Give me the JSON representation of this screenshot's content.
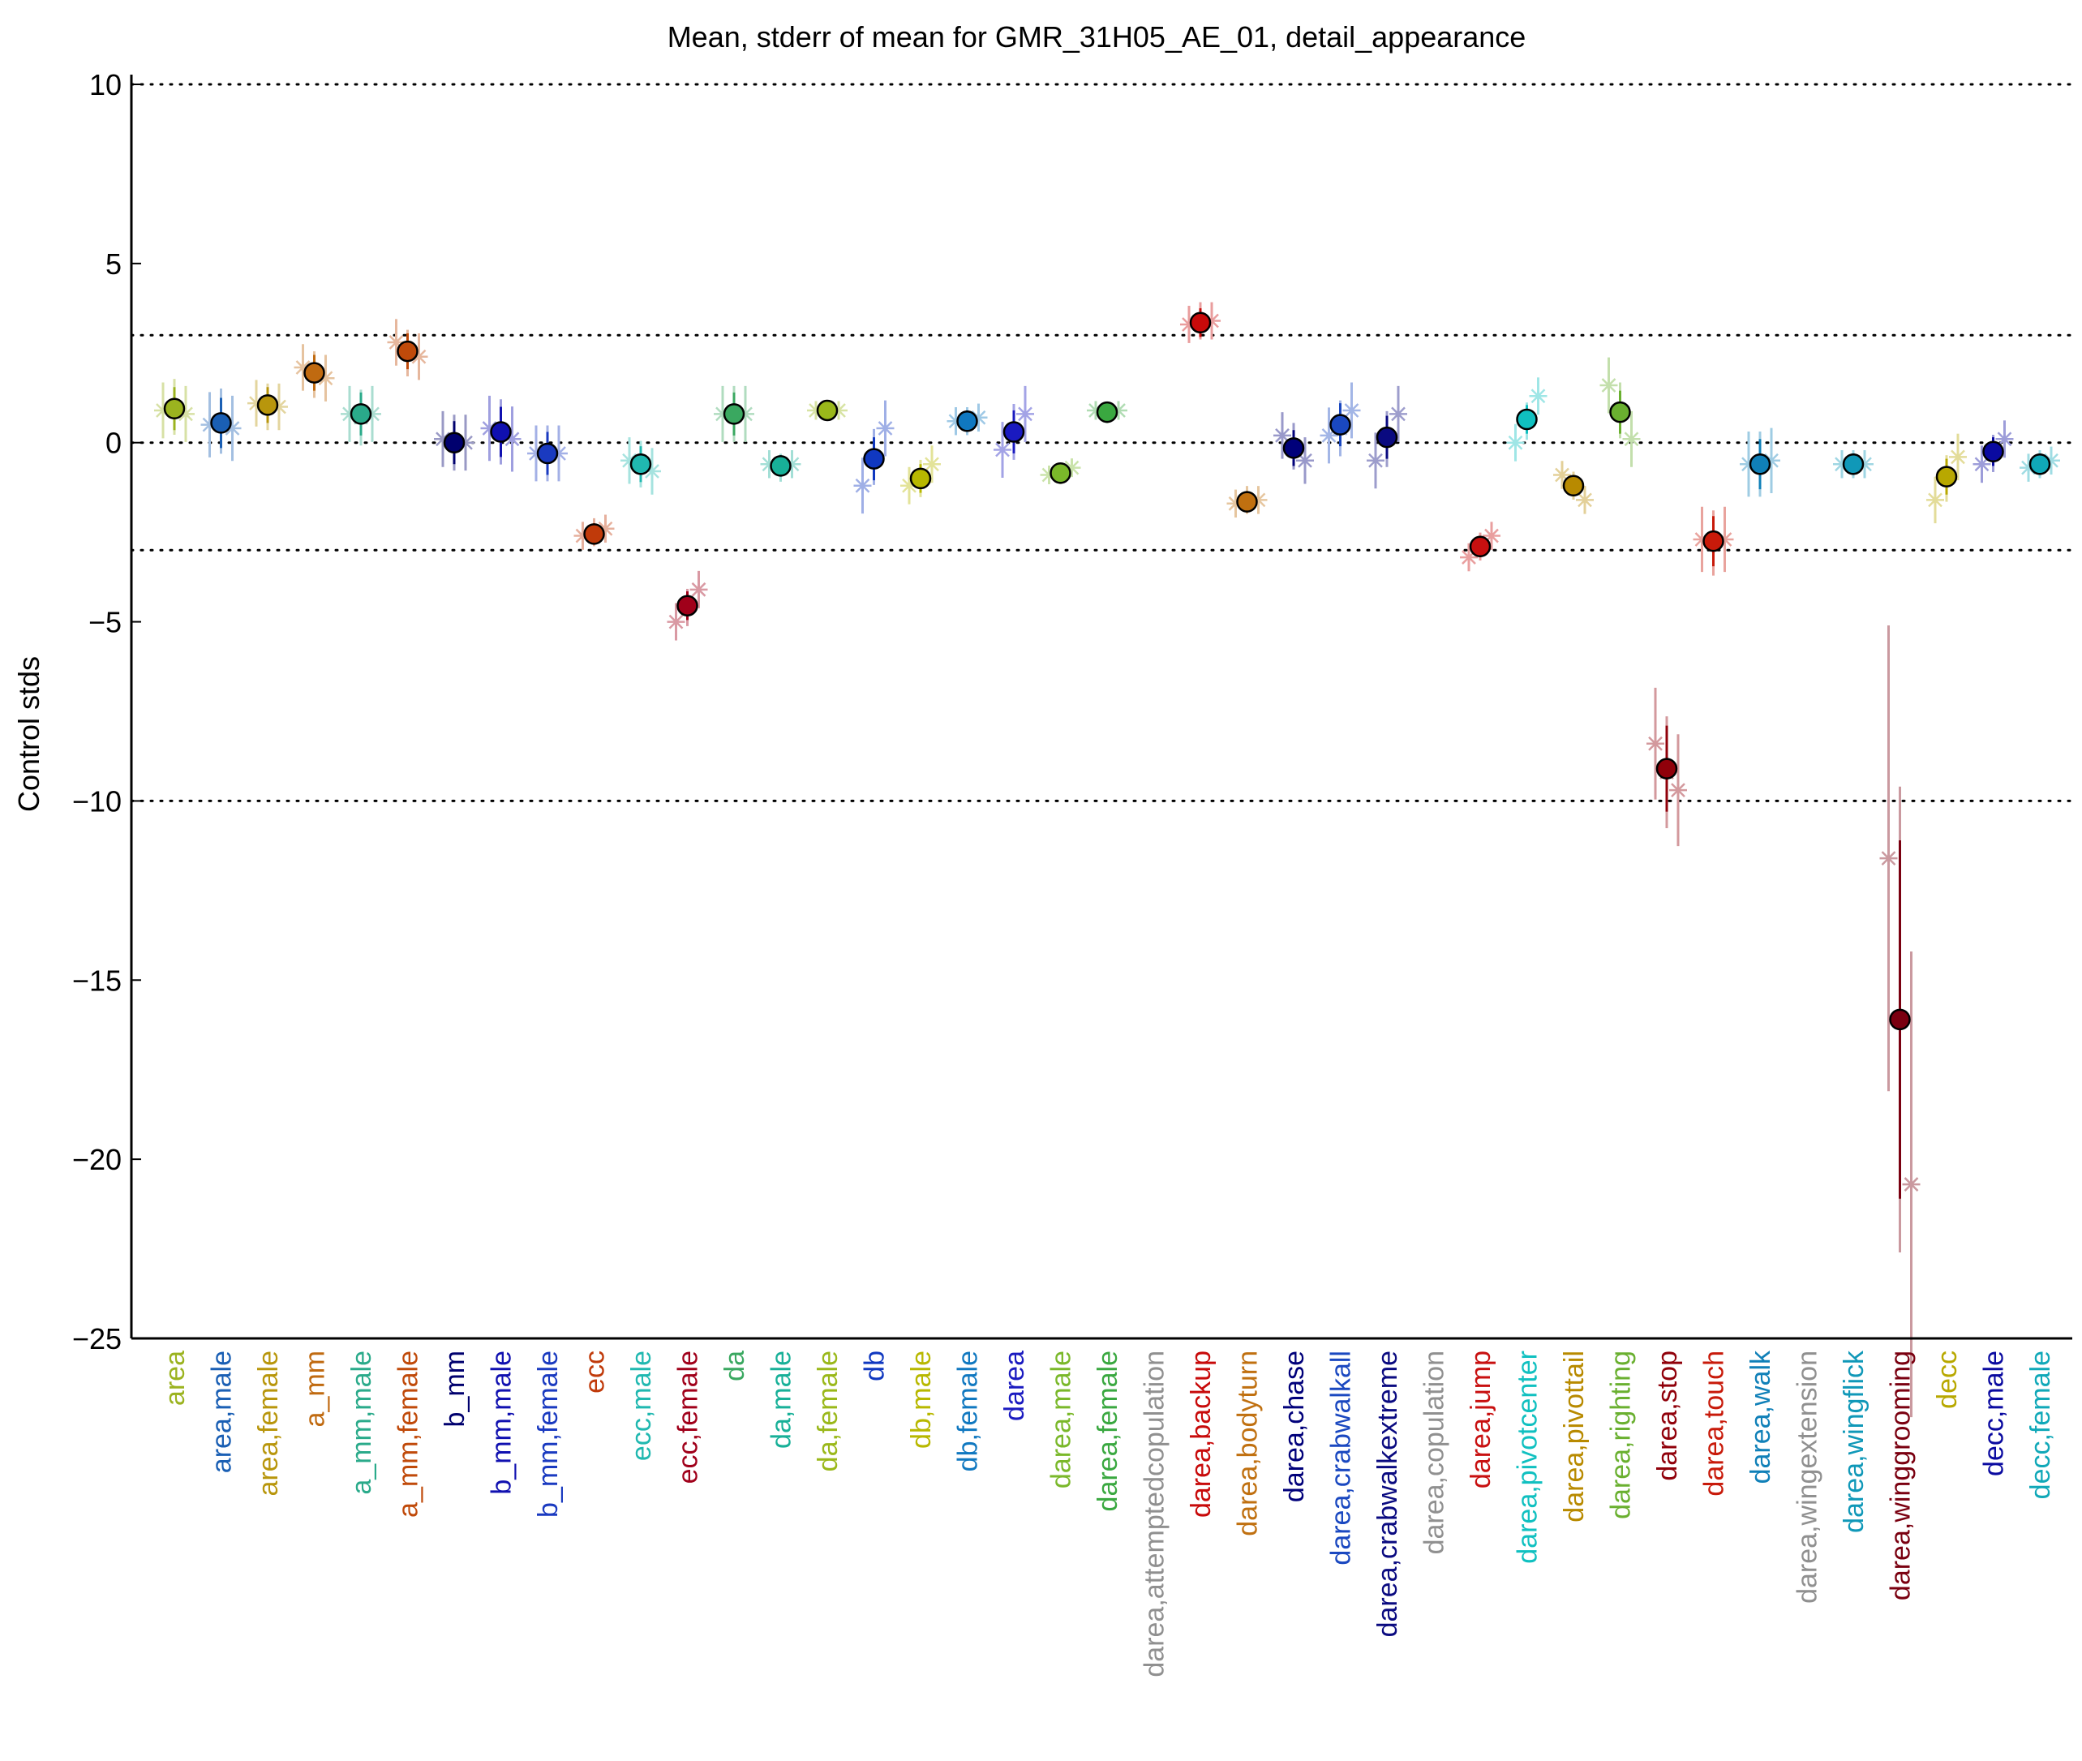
{
  "chart_data": {
    "type": "scatter",
    "title": "Mean, stderr of mean for GMR_31H05_AE_01, detail_appearance",
    "xlabel": "",
    "ylabel": "Control stds",
    "ylim": [
      -25,
      10
    ],
    "yticks": [
      10,
      5,
      0,
      -5,
      -10,
      -15,
      -20,
      -25
    ],
    "reference_lines": [
      10,
      3,
      0,
      -3,
      -10
    ],
    "grid": false,
    "legend": "none",
    "categories": [
      {
        "label": "area",
        "color": "#9bb31f",
        "mean": 0.95,
        "err": 0.6,
        "pts": [
          0.9,
          1.0,
          0.8
        ]
      },
      {
        "label": "area,male",
        "color": "#1a5fb4",
        "mean": 0.55,
        "err": 0.7,
        "pts": [
          0.5,
          0.6,
          0.4
        ]
      },
      {
        "label": "area,female",
        "color": "#b8960c",
        "mean": 1.05,
        "err": 0.5,
        "pts": [
          1.1,
          1.0,
          1.0
        ]
      },
      {
        "label": "a_mm",
        "color": "#c06a10",
        "mean": 1.95,
        "err": 0.5,
        "pts": [
          2.1,
          1.9,
          1.8
        ]
      },
      {
        "label": "a_mm,male",
        "color": "#2aaa8a",
        "mean": 0.8,
        "err": 0.6,
        "pts": [
          0.8,
          0.7,
          0.8
        ]
      },
      {
        "label": "a_mm,female",
        "color": "#c04a0a",
        "mean": 2.55,
        "err": 0.5,
        "pts": [
          2.8,
          2.5,
          2.4
        ]
      },
      {
        "label": "b_mm",
        "color": "#00006e",
        "mean": 0.0,
        "err": 0.6,
        "pts": [
          0.1,
          0.0,
          0.0
        ]
      },
      {
        "label": "b_mm,male",
        "color": "#1010b0",
        "mean": 0.3,
        "err": 0.7,
        "pts": [
          0.4,
          0.3,
          0.1
        ]
      },
      {
        "label": "b_mm,female",
        "color": "#1a3ac0",
        "mean": -0.3,
        "err": 0.6,
        "pts": [
          -0.3,
          -0.3,
          -0.3
        ]
      },
      {
        "label": "ecc",
        "color": "#c03a0a",
        "mean": -2.55,
        "err": 0.3,
        "pts": [
          -2.6,
          -2.5,
          -2.4
        ]
      },
      {
        "label": "ecc,male",
        "color": "#20b8b0",
        "mean": -0.6,
        "err": 0.5,
        "pts": [
          -0.5,
          -0.6,
          -0.8
        ]
      },
      {
        "label": "ecc,female",
        "color": "#a0001a",
        "mean": -4.55,
        "err": 0.4,
        "pts": [
          -5.0,
          -4.6,
          -4.1
        ]
      },
      {
        "label": "da",
        "color": "#3aa860",
        "mean": 0.8,
        "err": 0.6,
        "pts": [
          0.8,
          0.8,
          0.8
        ]
      },
      {
        "label": "da,male",
        "color": "#18b098",
        "mean": -0.65,
        "err": 0.3,
        "pts": [
          -0.6,
          -0.7,
          -0.6
        ]
      },
      {
        "label": "da,female",
        "color": "#9ab81a",
        "mean": 0.9,
        "err": 0.2,
        "pts": [
          0.9,
          0.9,
          0.9
        ]
      },
      {
        "label": "db",
        "color": "#1038c0",
        "mean": -0.45,
        "err": 0.6,
        "pts": [
          -1.2,
          -0.4,
          0.4
        ]
      },
      {
        "label": "db,male",
        "color": "#b8b800",
        "mean": -1.0,
        "err": 0.4,
        "pts": [
          -1.2,
          -1.0,
          -0.6
        ]
      },
      {
        "label": "db,female",
        "color": "#1078c0",
        "mean": 0.6,
        "err": 0.3,
        "pts": [
          0.6,
          0.6,
          0.7
        ]
      },
      {
        "label": "darea",
        "color": "#1a1ac0",
        "mean": 0.3,
        "err": 0.6,
        "pts": [
          -0.2,
          0.3,
          0.8
        ]
      },
      {
        "label": "darea,male",
        "color": "#7ab82a",
        "mean": -0.85,
        "err": 0.2,
        "pts": [
          -0.9,
          -0.9,
          -0.7
        ]
      },
      {
        "label": "darea,female",
        "color": "#3aa840",
        "mean": 0.85,
        "err": 0.2,
        "pts": [
          0.9,
          0.8,
          0.9
        ]
      },
      {
        "label": "darea,attemptedcopulation",
        "color": "#909090",
        "mean": null,
        "err": null,
        "pts": []
      },
      {
        "label": "darea,backup",
        "color": "#c80a0a",
        "mean": 3.35,
        "err": 0.4,
        "pts": [
          3.3,
          3.4,
          3.4
        ]
      },
      {
        "label": "darea,bodyturn",
        "color": "#c07010",
        "mean": -1.65,
        "err": 0.3,
        "pts": [
          -1.7,
          -1.6,
          -1.6
        ]
      },
      {
        "label": "darea,chase",
        "color": "#00007a",
        "mean": -0.15,
        "err": 0.5,
        "pts": [
          0.2,
          -0.1,
          -0.5
        ]
      },
      {
        "label": "darea,crabwalkall",
        "color": "#1a48c0",
        "mean": 0.5,
        "err": 0.6,
        "pts": [
          0.2,
          0.4,
          0.9
        ]
      },
      {
        "label": "darea,crabwalkextreme",
        "color": "#0a0a80",
        "mean": 0.15,
        "err": 0.6,
        "pts": [
          -0.5,
          0.1,
          0.8
        ]
      },
      {
        "label": "darea,copulation",
        "color": "#909090",
        "mean": null,
        "err": null,
        "pts": []
      },
      {
        "label": "darea,jump",
        "color": "#c81010",
        "mean": -2.9,
        "err": 0.3,
        "pts": [
          -3.2,
          -2.9,
          -2.6
        ]
      },
      {
        "label": "darea,pivotcenter",
        "color": "#10c0c0",
        "mean": 0.65,
        "err": 0.4,
        "pts": [
          0.0,
          0.6,
          1.3
        ]
      },
      {
        "label": "darea,pivottail",
        "color": "#b88a00",
        "mean": -1.2,
        "err": 0.3,
        "pts": [
          -0.9,
          -1.2,
          -1.6
        ]
      },
      {
        "label": "darea,righting",
        "color": "#6ab030",
        "mean": 0.85,
        "err": 0.6,
        "pts": [
          1.6,
          0.9,
          0.1
        ]
      },
      {
        "label": "darea,stop",
        "color": "#90000a",
        "mean": -9.1,
        "err": 1.2,
        "pts": [
          -8.4,
          -9.2,
          -9.7
        ]
      },
      {
        "label": "darea,touch",
        "color": "#c81a0a",
        "mean": -2.75,
        "err": 0.7,
        "pts": [
          -2.7,
          -2.8,
          -2.7
        ]
      },
      {
        "label": "darea,walk",
        "color": "#1080b8",
        "mean": -0.6,
        "err": 0.7,
        "pts": [
          -0.6,
          -0.6,
          -0.5
        ]
      },
      {
        "label": "darea,wingextension",
        "color": "#909090",
        "mean": null,
        "err": null,
        "pts": []
      },
      {
        "label": "darea,wingflick",
        "color": "#1098b8",
        "mean": -0.6,
        "err": 0.3,
        "pts": [
          -0.6,
          -0.6,
          -0.6
        ]
      },
      {
        "label": "darea,winggrooming",
        "color": "#7a0010",
        "mean": -16.1,
        "err": 5.0,
        "pts": [
          -11.6,
          -16.1,
          -20.7
        ]
      },
      {
        "label": "decc",
        "color": "#b8a800",
        "mean": -0.95,
        "err": 0.5,
        "pts": [
          -1.6,
          -1.0,
          -0.4
        ]
      },
      {
        "label": "decc,male",
        "color": "#0a0aa0",
        "mean": -0.25,
        "err": 0.4,
        "pts": [
          -0.6,
          -0.3,
          0.1
        ]
      },
      {
        "label": "decc,female",
        "color": "#10a8b8",
        "mean": -0.6,
        "err": 0.3,
        "pts": [
          -0.7,
          -0.6,
          -0.5
        ]
      }
    ]
  }
}
